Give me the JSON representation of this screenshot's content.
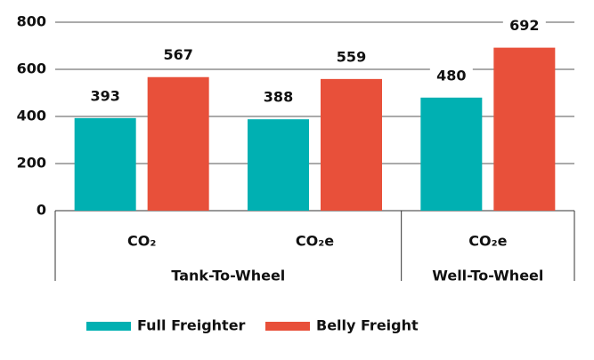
{
  "chart_data": {
    "type": "bar",
    "groups": [
      {
        "label": "Tank-To-Wheel",
        "categories": [
          "CO₂",
          "CO₂e"
        ]
      },
      {
        "label": "Well-To-Wheel",
        "categories": [
          "CO₂e"
        ]
      }
    ],
    "series": [
      {
        "name": "Full Freighter",
        "color": "#00b0b2",
        "values": [
          393,
          388,
          480
        ]
      },
      {
        "name": "Belly Freight",
        "color": "#e8503a",
        "values": [
          567,
          559,
          692
        ]
      }
    ],
    "ylim": [
      0,
      800
    ],
    "yticks": [
      0,
      200,
      400,
      600,
      800
    ],
    "grid": true
  }
}
